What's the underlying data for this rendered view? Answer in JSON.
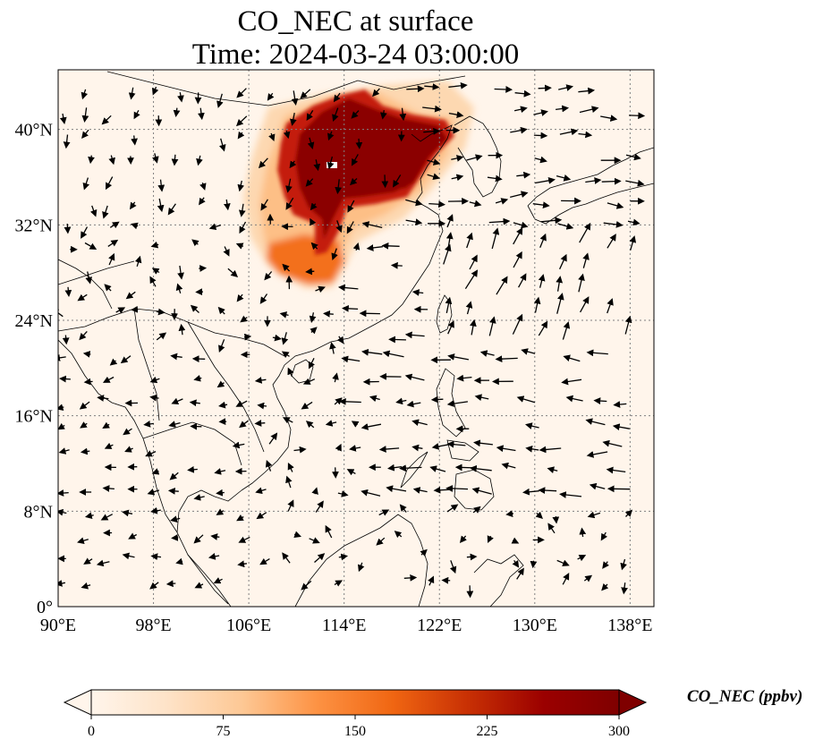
{
  "title": {
    "line1": "CO_NEC at surface",
    "line2": "Time: 2024-03-24 03:00:00"
  },
  "map": {
    "lon_range": [
      90,
      140
    ],
    "lat_range": [
      0,
      45
    ],
    "lon_ticks": [
      {
        "value": 90,
        "label": "90°E"
      },
      {
        "value": 98,
        "label": "98°E"
      },
      {
        "value": 106,
        "label": "106°E"
      },
      {
        "value": 114,
        "label": "114°E"
      },
      {
        "value": 122,
        "label": "122°E"
      },
      {
        "value": 130,
        "label": "130°E"
      },
      {
        "value": 138,
        "label": "138°E"
      }
    ],
    "lat_ticks": [
      {
        "value": 0,
        "label": "0°"
      },
      {
        "value": 8,
        "label": "8°N"
      },
      {
        "value": 16,
        "label": "16°N"
      },
      {
        "value": 24,
        "label": "24°N"
      },
      {
        "value": 32,
        "label": "32°N"
      },
      {
        "value": 40,
        "label": "40°N"
      }
    ],
    "gridlines": true,
    "background_color": "#fff5eb",
    "plume_colors": [
      "#fdd8b1",
      "#fdbf86",
      "#f3701b",
      "#c41a0a",
      "#8b0000"
    ]
  },
  "colorbar": {
    "label": "CO_NEC (ppbv)",
    "min": 0,
    "max": 300,
    "ticks": [
      0,
      75,
      150,
      225,
      300
    ],
    "colors": [
      "#fff5eb",
      "#fee3c8",
      "#fdc895",
      "#fd9243",
      "#f06612",
      "#c83004",
      "#9b0000",
      "#7f0000"
    ],
    "extend": "both"
  }
}
